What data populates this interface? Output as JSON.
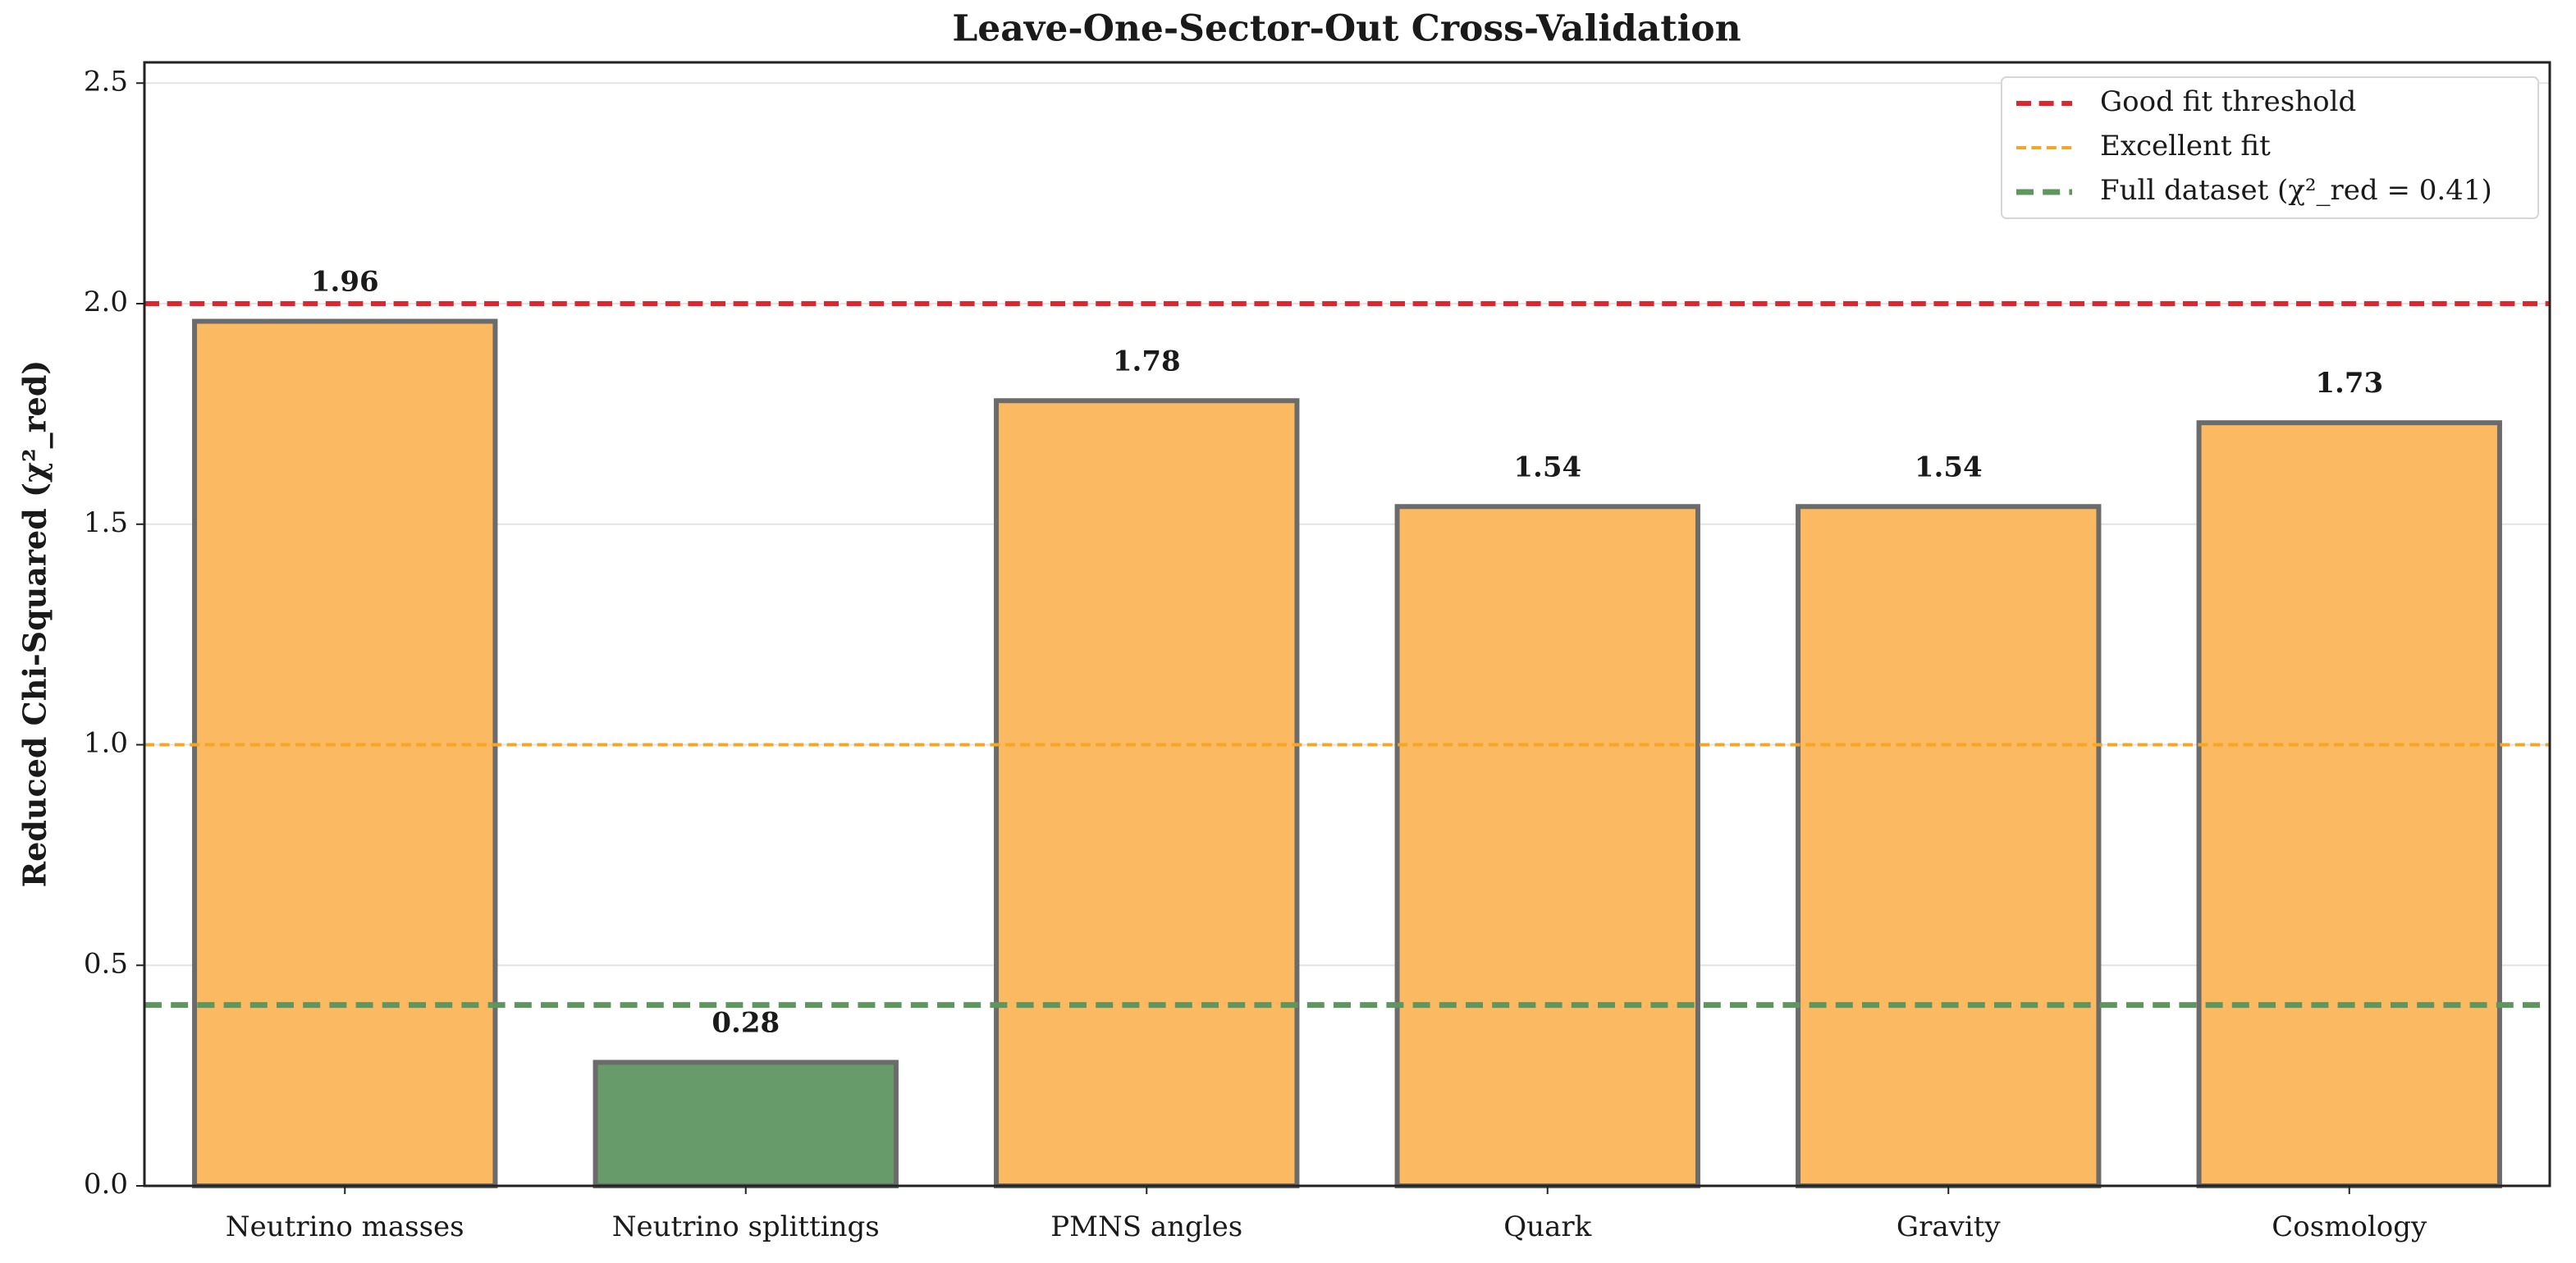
{
  "chart_data": {
    "type": "bar",
    "title": "Leave-One-Sector-Out Cross-Validation",
    "ylabel": "Reduced Chi-Squared (χ²_red)",
    "categories": [
      "Neutrino masses",
      "Neutrino splittings",
      "PMNS angles",
      "Quark",
      "Gravity",
      "Cosmology"
    ],
    "values": [
      1.96,
      0.28,
      1.78,
      1.54,
      1.54,
      1.73
    ],
    "colors": [
      "#fbba62",
      "#689b6a",
      "#fbba62",
      "#fbba62",
      "#fbba62",
      "#fbba62"
    ],
    "edge_color": "#6b6b6b",
    "ylim": [
      0,
      2.547
    ],
    "yticks": [
      {
        "value": 0,
        "label": "0.0"
      },
      0.5,
      {
        "value": 1,
        "label": "1.0"
      },
      1.5,
      {
        "value": 2,
        "label": "2.0"
      },
      2.5
    ],
    "grid": true,
    "legend": "upper right",
    "reference_lines": [
      {
        "name": "Good fit threshold",
        "value": 2,
        "color": "#e0262d",
        "linewidth": 6
      },
      {
        "name": "Excellent fit",
        "value": 1,
        "color": "#f5a623",
        "linewidth": 4
      },
      {
        "name": "Full dataset (χ²_red = 0.41)",
        "value": 0.41,
        "color": "#5f9660",
        "linewidth": 7
      }
    ]
  }
}
